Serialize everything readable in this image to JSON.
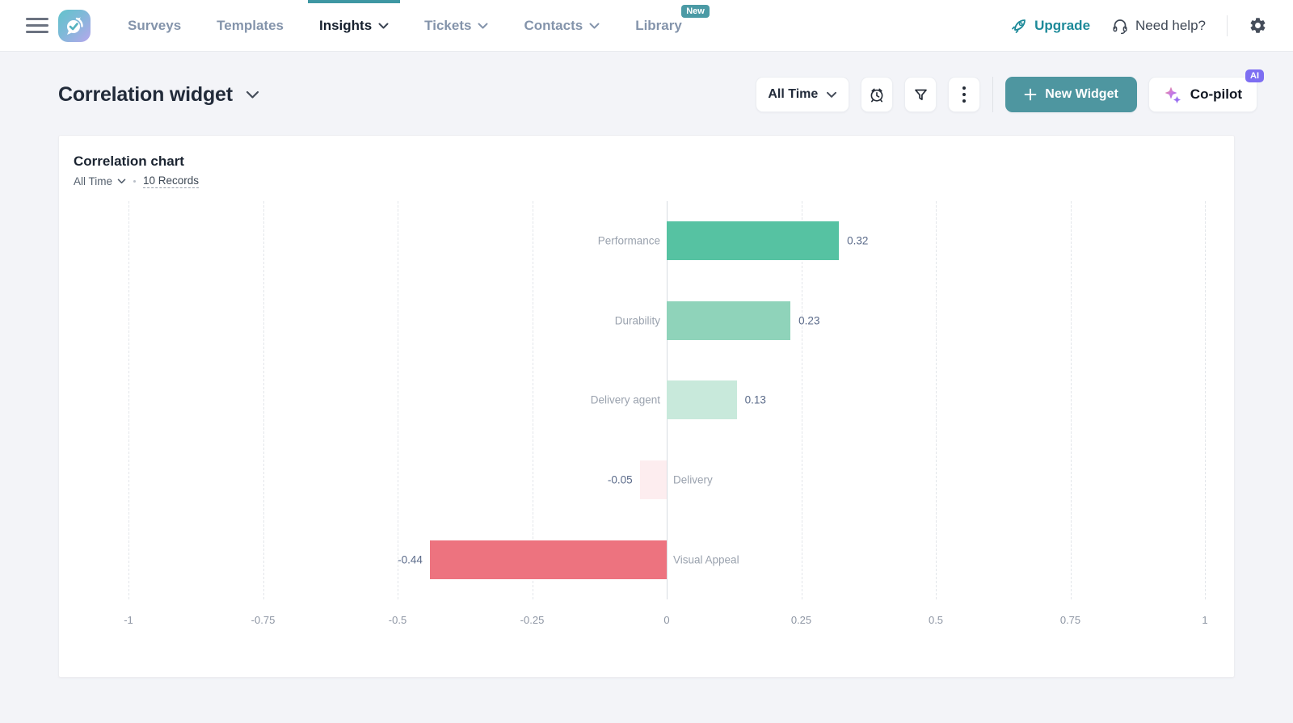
{
  "nav": {
    "items": [
      {
        "label": "Surveys"
      },
      {
        "label": "Templates"
      },
      {
        "label": "Insights",
        "active": true,
        "has_dropdown": true
      },
      {
        "label": "Tickets",
        "has_dropdown": true
      },
      {
        "label": "Contacts",
        "has_dropdown": true
      },
      {
        "label": "Library",
        "badge": "New"
      }
    ],
    "upgrade_label": "Upgrade",
    "help_label": "Need help?"
  },
  "header": {
    "title": "Correlation widget",
    "time_filter_label": "All Time",
    "new_widget_label": "New Widget",
    "copilot_label": "Co-pilot",
    "ai_badge": "AI"
  },
  "widget": {
    "title": "Correlation chart",
    "time_filter_label": "All Time",
    "records_label": "10 Records"
  },
  "chart_data": {
    "type": "bar",
    "orientation": "horizontal",
    "title": "Correlation chart",
    "categories": [
      "Performance",
      "Durability",
      "Delivery agent",
      "Delivery",
      "Visual Appeal"
    ],
    "values": [
      0.32,
      0.23,
      0.13,
      -0.05,
      -0.44
    ],
    "value_labels": [
      "0.32",
      "0.23",
      "0.13",
      "-0.05",
      "-0.44"
    ],
    "bar_colors": [
      "#56c2a2",
      "#8fd3ba",
      "#c8e9db",
      "#fdedef",
      "#ed737f"
    ],
    "xlim": [
      -1,
      1
    ],
    "x_ticks": [
      "-1",
      "-0.75",
      "-0.5",
      "-0.25",
      "0",
      "0.25",
      "0.5",
      "0.75",
      "1"
    ],
    "grid": "vertical-dashed",
    "zero_axis": true,
    "legend": false
  },
  "colors": {
    "accent_teal": "#3e97a3",
    "button_teal": "#4e96a0",
    "upgrade_teal": "#1d8a99",
    "ai_badge_purple": "#7d6ef2",
    "new_badge_teal": "#4b9aa5"
  }
}
